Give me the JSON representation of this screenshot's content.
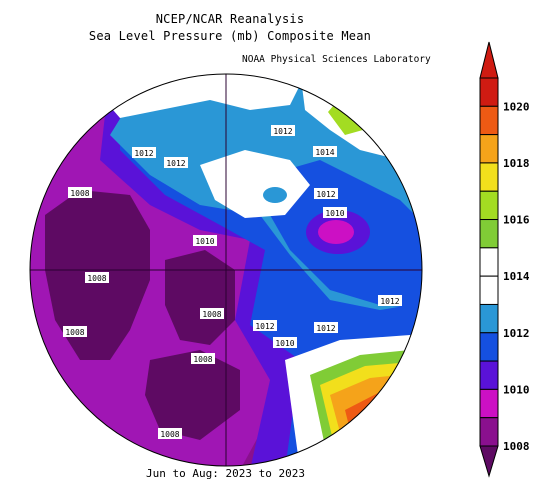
{
  "header": {
    "line1": "NCEP/NCAR Reanalysis",
    "line2": "Sea Level Pressure (mb) Composite Mean",
    "credit": "NOAA Physical Sciences Laboratory"
  },
  "footer": {
    "period": "Jun to Aug: 2023 to 2023"
  },
  "colorbar": {
    "levels": [
      {
        "label": "1020",
        "color": "#cf1b12"
      },
      {
        "label": "",
        "color": "#ee5a14"
      },
      {
        "label": "1018",
        "color": "#f5a31a"
      },
      {
        "label": "",
        "color": "#f2df1c"
      },
      {
        "label": "1016",
        "color": "#a3dc22"
      },
      {
        "label": "",
        "color": "#80cc36"
      },
      {
        "label": "1014",
        "color": "#ffffff"
      },
      {
        "label": "",
        "color": "#ffffff"
      },
      {
        "label": "1012",
        "color": "#2a97d6"
      },
      {
        "label": "",
        "color": "#1550e0"
      },
      {
        "label": "1010",
        "color": "#5a12d8"
      },
      {
        "label": "",
        "color": "#cc10c4"
      },
      {
        "label": "1008",
        "color": "#8a108e"
      }
    ]
  },
  "map_labels": [
    {
      "text": "1012",
      "name": "contour-label-1012-a"
    },
    {
      "text": "1014",
      "name": "contour-label-1014-a"
    },
    {
      "text": "1012",
      "name": "contour-label-1012-b"
    },
    {
      "text": "1012",
      "name": "contour-label-1012-c"
    },
    {
      "text": "1008",
      "name": "contour-label-1008-a"
    },
    {
      "text": "1012",
      "name": "contour-label-1012-d"
    },
    {
      "text": "1010",
      "name": "contour-label-1010-a"
    },
    {
      "text": "1010",
      "name": "contour-label-1010-b"
    },
    {
      "text": "1008",
      "name": "contour-label-1008-b"
    },
    {
      "text": "1008",
      "name": "contour-label-1008-c"
    },
    {
      "text": "1012",
      "name": "contour-label-1012-e"
    },
    {
      "text": "1012",
      "name": "contour-label-1012-f"
    },
    {
      "text": "1012",
      "name": "contour-label-1012-g"
    },
    {
      "text": "1008",
      "name": "contour-label-1008-d"
    },
    {
      "text": "1010",
      "name": "contour-label-1010-c"
    },
    {
      "text": "1008",
      "name": "contour-label-1008-e"
    },
    {
      "text": "1008",
      "name": "contour-label-1008-f"
    }
  ]
}
